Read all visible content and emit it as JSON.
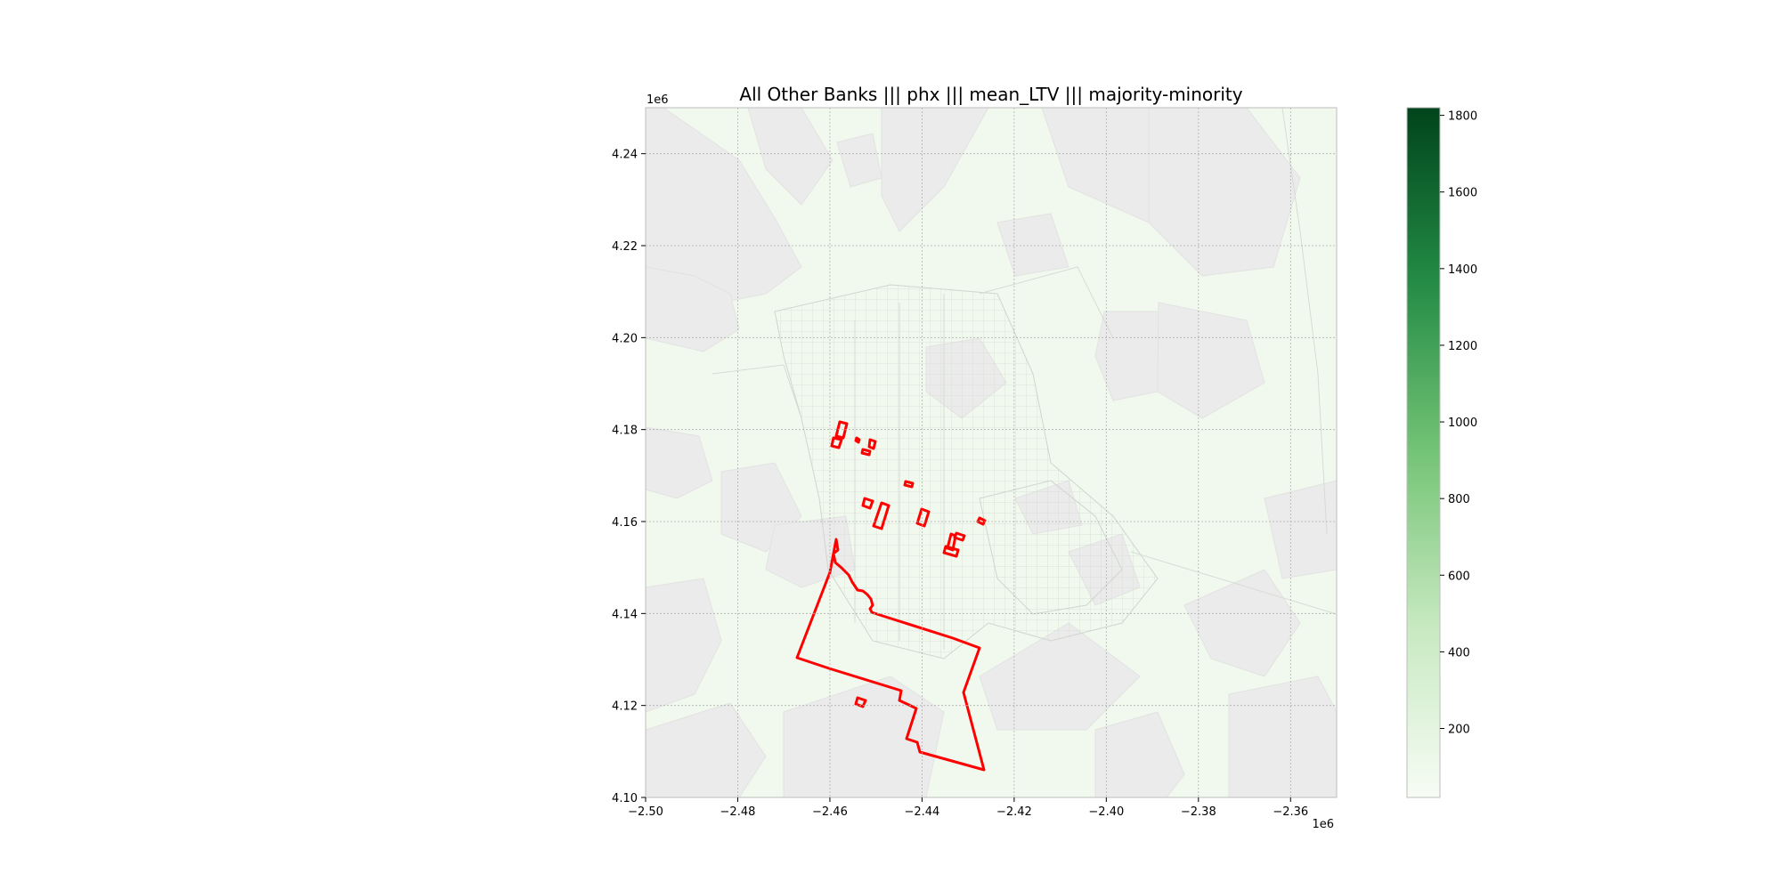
{
  "title": "All Other Banks ||| phx ||| mean_LTV ||| majority-minority",
  "map": {
    "x_ticks": [
      "−2.50",
      "−2.48",
      "−2.46",
      "−2.44",
      "−2.42",
      "−2.40",
      "−2.38",
      "−2.36"
    ],
    "y_ticks": [
      "4.10",
      "4.12",
      "4.14",
      "4.16",
      "4.18",
      "4.20",
      "4.22",
      "4.24"
    ],
    "x_offset_label": "1e6",
    "y_offset_label": "1e6",
    "xlim": [
      -2.5,
      -2.35
    ],
    "ylim": [
      4.1,
      4.25
    ],
    "grid": true,
    "tract_fill_color": "#f1f9ee",
    "no_data_color": "#ebebeb",
    "highlight_color": "#ff0000"
  },
  "colorbar": {
    "ticks": [
      "200",
      "400",
      "600",
      "800",
      "1000",
      "1200",
      "1400",
      "1600",
      "1800"
    ],
    "min": 20,
    "max": 1820,
    "colormap": "Greens",
    "colors": [
      "#f7fcf5",
      "#c7e9c0",
      "#74c476",
      "#238b45",
      "#00441b"
    ]
  }
}
